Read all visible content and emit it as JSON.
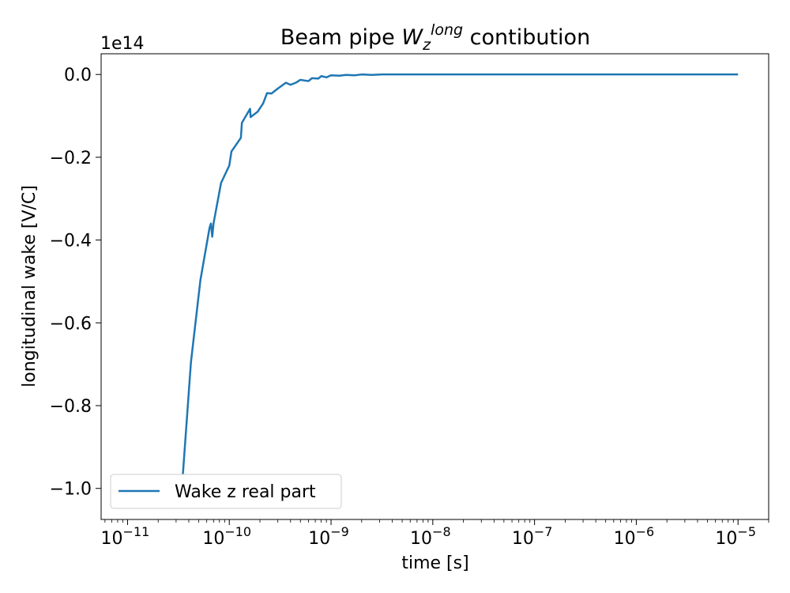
{
  "chart_data": {
    "type": "line",
    "title": "Beam pipe W_z^long contibution",
    "title_parts": {
      "prefix": "Beam pipe ",
      "main": "W",
      "sub": "z",
      "sup": "long",
      "suffix": " contibution"
    },
    "xlabel": "time [s]",
    "ylabel": "longitudinal wake [V/C]",
    "x_scale": "log",
    "y_offset_label": "1e14",
    "xlim": [
      5.5e-12,
      2e-05
    ],
    "ylim": [
      -1.075,
      0.05
    ],
    "x_ticks": [
      {
        "value": 1e-11,
        "base": "10",
        "exp": "−11"
      },
      {
        "value": 1e-10,
        "base": "10",
        "exp": "−10"
      },
      {
        "value": 1e-09,
        "base": "10",
        "exp": "−9"
      },
      {
        "value": 1e-08,
        "base": "10",
        "exp": "−8"
      },
      {
        "value": 1e-07,
        "base": "10",
        "exp": "−7"
      },
      {
        "value": 1e-06,
        "base": "10",
        "exp": "−6"
      },
      {
        "value": 1e-05,
        "base": "10",
        "exp": "−5"
      }
    ],
    "y_ticks": [
      {
        "value": 0.0,
        "label": "0.0"
      },
      {
        "value": -0.2,
        "label": "−0.2"
      },
      {
        "value": -0.4,
        "label": "−0.4"
      },
      {
        "value": -0.6,
        "label": "−0.6"
      },
      {
        "value": -0.8,
        "label": "−0.8"
      },
      {
        "value": -1.0,
        "label": "−1.0"
      }
    ],
    "grid": false,
    "legend": {
      "position": "lower-left"
    },
    "series": [
      {
        "name": "Wake z real part",
        "color": "#1f77b4",
        "x": [
          3.5e-11,
          4.2e-11,
          5.2e-11,
          6.4e-11,
          6.6e-11,
          6.8e-11,
          7e-11,
          8.3e-11,
          1e-10,
          1.05e-10,
          1.3e-10,
          1.33e-10,
          1.6e-10,
          1.62e-10,
          1.9e-10,
          2.15e-10,
          2.35e-10,
          2.6e-10,
          3e-10,
          3.6e-10,
          4e-10,
          4.5e-10,
          5e-10,
          6e-10,
          6.5e-10,
          7.5e-10,
          8e-10,
          9e-10,
          1e-09,
          1.2e-09,
          1.4e-09,
          1.7e-09,
          2e-09,
          2.5e-09,
          3.2e-09,
          5e-09,
          1e-08,
          1e-07,
          1e-06,
          1e-05
        ],
        "values": [
          -0.965,
          -0.695,
          -0.497,
          -0.37,
          -0.36,
          -0.392,
          -0.36,
          -0.262,
          -0.22,
          -0.186,
          -0.153,
          -0.117,
          -0.083,
          -0.103,
          -0.09,
          -0.07,
          -0.045,
          -0.046,
          -0.034,
          -0.02,
          -0.025,
          -0.02,
          -0.013,
          -0.016,
          -0.009,
          -0.01,
          -0.004,
          -0.007,
          -0.002,
          -0.003,
          -0.001,
          -0.002,
          0.0,
          -0.001,
          0.0,
          0.0,
          0.0,
          0.0,
          0.0,
          0.0
        ]
      }
    ]
  }
}
